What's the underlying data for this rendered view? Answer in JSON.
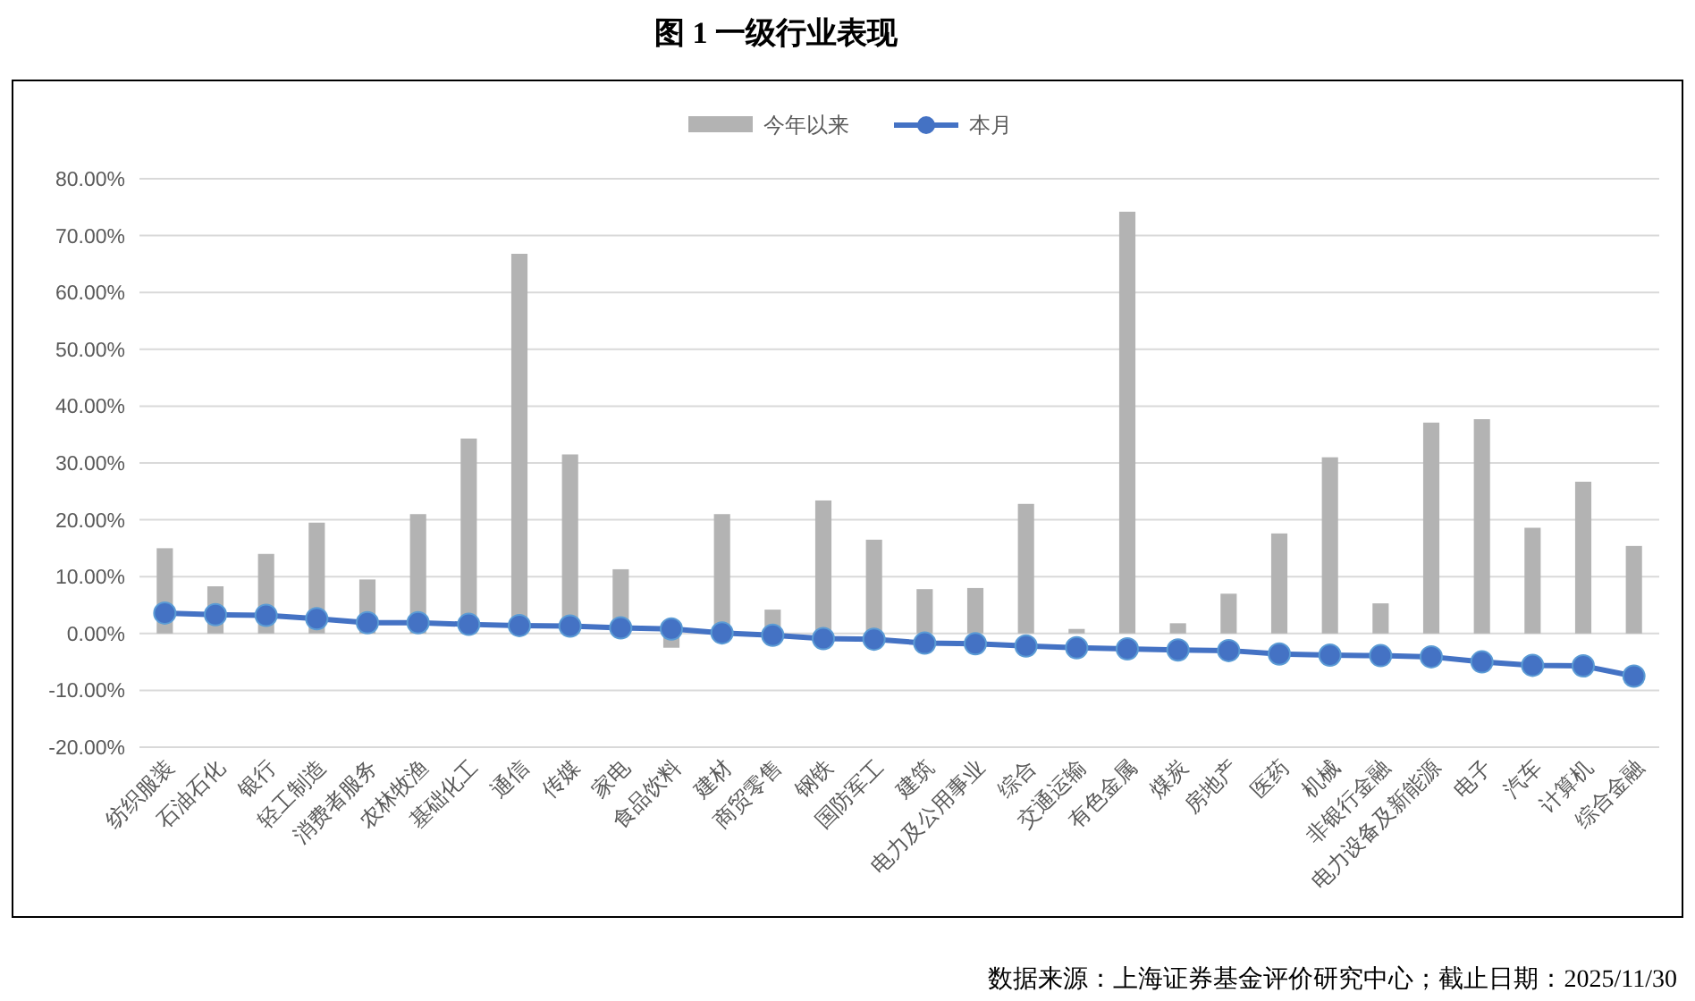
{
  "chart_data": {
    "type": "bar",
    "title": "图 1 一级行业表现",
    "categories": [
      "纺织服装",
      "石油石化",
      "银行",
      "轻工制造",
      "消费者服务",
      "农林牧渔",
      "基础化工",
      "通信",
      "传媒",
      "家电",
      "食品饮料",
      "建材",
      "商贸零售",
      "钢铁",
      "国防军工",
      "建筑",
      "电力及公用事业",
      "综合",
      "交通运输",
      "有色金属",
      "煤炭",
      "房地产",
      "医药",
      "机械",
      "非银行金融",
      "电力设备及新能源",
      "电子",
      "汽车",
      "计算机",
      "综合金融"
    ],
    "series": [
      {
        "name": "今年以来",
        "color": "#b3b3b3",
        "values": [
          15.0,
          8.3,
          14.0,
          19.5,
          9.5,
          21.0,
          34.3,
          66.8,
          31.5,
          11.3,
          -2.5,
          21.0,
          4.2,
          23.4,
          16.5,
          7.8,
          8.0,
          22.8,
          0.8,
          74.2,
          1.8,
          7.0,
          17.6,
          31.0,
          5.3,
          37.1,
          37.7,
          18.6,
          26.7,
          15.4
        ]
      },
      {
        "name": "本月",
        "type": "line",
        "color": "#4472c4",
        "marker": "circle",
        "values": [
          3.6,
          3.3,
          3.2,
          2.6,
          1.9,
          1.9,
          1.6,
          1.4,
          1.3,
          1.0,
          0.8,
          0.1,
          -0.3,
          -0.9,
          -1.0,
          -1.7,
          -1.8,
          -2.2,
          -2.5,
          -2.7,
          -2.9,
          -3.0,
          -3.6,
          -3.8,
          -3.9,
          -4.1,
          -5.0,
          -5.6,
          -5.7,
          -7.5
        ]
      }
    ],
    "ylim": [
      -20,
      80
    ],
    "yticks": [
      {
        "value": -20,
        "label": "-20.00%"
      },
      {
        "value": -10,
        "label": "-10.00%"
      },
      {
        "value": 0,
        "label": "0.00%"
      },
      {
        "value": 10,
        "label": "10.00%"
      },
      {
        "value": 20,
        "label": "20.00%"
      },
      {
        "value": 30,
        "label": "30.00%"
      },
      {
        "value": 40,
        "label": "40.00%"
      },
      {
        "value": 50,
        "label": "50.00%"
      },
      {
        "value": 60,
        "label": "60.00%"
      },
      {
        "value": 70,
        "label": "70.00%"
      },
      {
        "value": 80,
        "label": "80.00%"
      }
    ],
    "grid": "y",
    "legend": "top",
    "annotations": [
      "数据来源：上海证券基金评价研究中心；截止日期：2025/11/30"
    ]
  }
}
